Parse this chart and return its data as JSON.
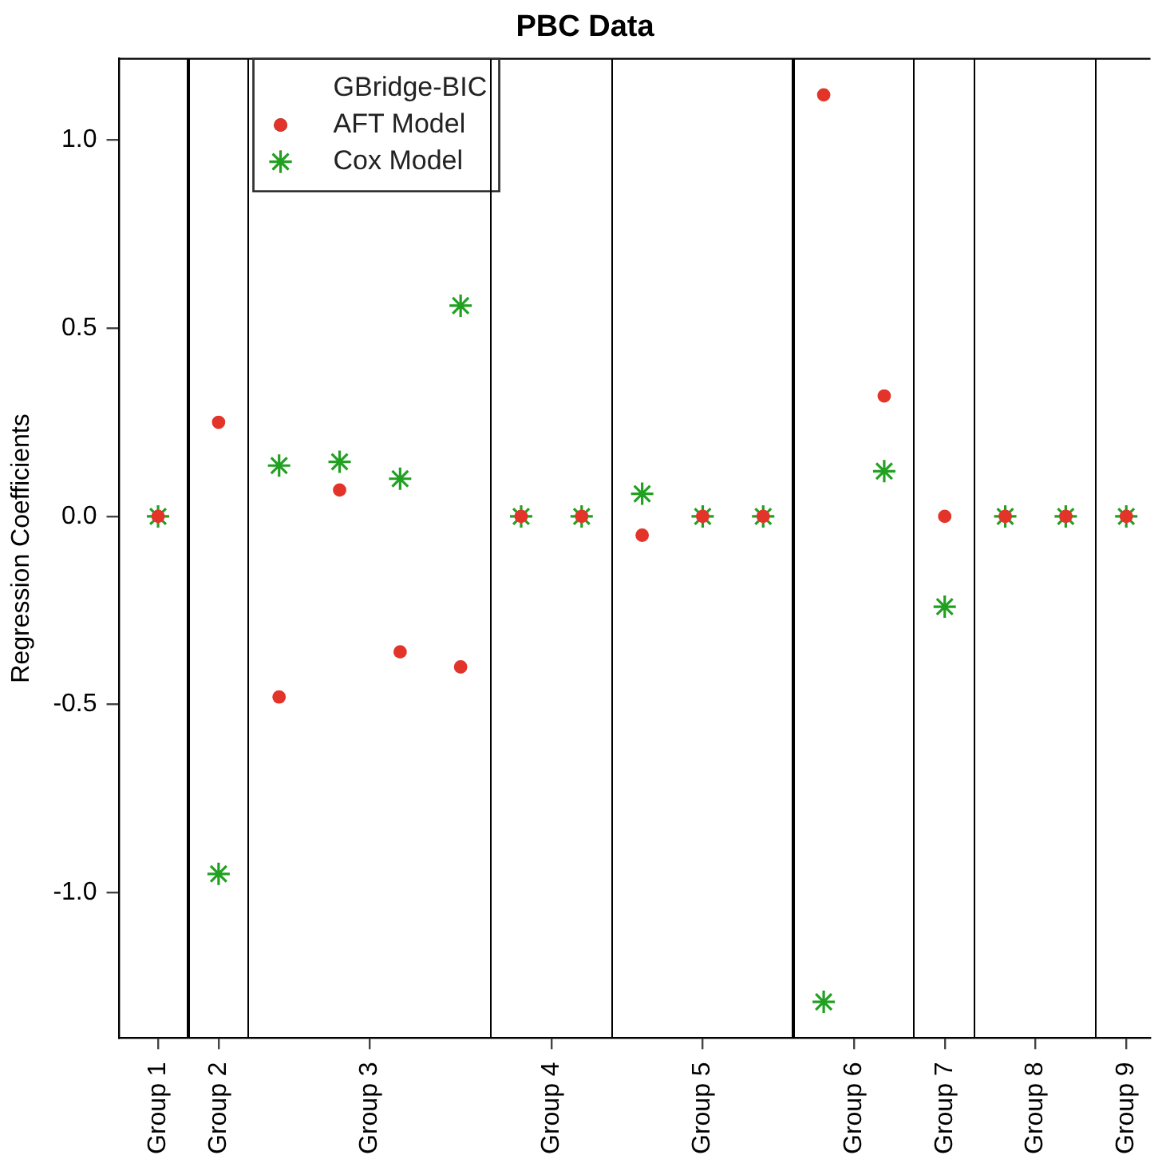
{
  "chart_data": {
    "type": "scatter",
    "title": "PBC Data",
    "ylabel": "Regression Coefficients",
    "legend_title": "GBridge-BIC",
    "legend": "top left",
    "grid": false,
    "categories": [
      "Group 1",
      null,
      "Group 2",
      null,
      null,
      null,
      null,
      "Group 3",
      null,
      null,
      null,
      null,
      null,
      "Group 4",
      null,
      null,
      null,
      null,
      "Group 5",
      null,
      null,
      null,
      null,
      "Group 6",
      null,
      null,
      "Group 7",
      null,
      null,
      "Group 8",
      null,
      null,
      "Group 9"
    ],
    "ylim": [
      -1.386,
      1.216
    ],
    "yticks": [
      {
        "value": -1,
        "label": "-1.0"
      },
      {
        "value": -0.5,
        "label": "-0.5"
      },
      {
        "value": 0,
        "label": "0.0"
      },
      {
        "value": 0.5,
        "label": "0.5"
      },
      {
        "value": 1,
        "label": "1.0"
      }
    ],
    "series": [
      {
        "name": "AFT Model",
        "color": "#e3342a",
        "marker": "circle",
        "values": [
          0,
          null,
          0.25,
          null,
          -0.48,
          null,
          0.07,
          null,
          -0.36,
          null,
          -0.4,
          null,
          0,
          null,
          0,
          null,
          -0.05,
          null,
          0,
          null,
          0,
          null,
          1.12,
          null,
          0.32,
          null,
          0,
          null,
          0,
          null,
          0,
          null,
          0
        ]
      },
      {
        "name": "Cox Model",
        "color": "#22a022",
        "marker": "cross",
        "values": [
          0,
          null,
          -0.95,
          null,
          0.135,
          null,
          0.145,
          null,
          0.1,
          null,
          0.56,
          null,
          0,
          null,
          0,
          null,
          0.06,
          null,
          0,
          null,
          0,
          null,
          -1.29,
          null,
          0.12,
          null,
          -0.24,
          null,
          0,
          null,
          0,
          null,
          0
        ]
      }
    ]
  }
}
